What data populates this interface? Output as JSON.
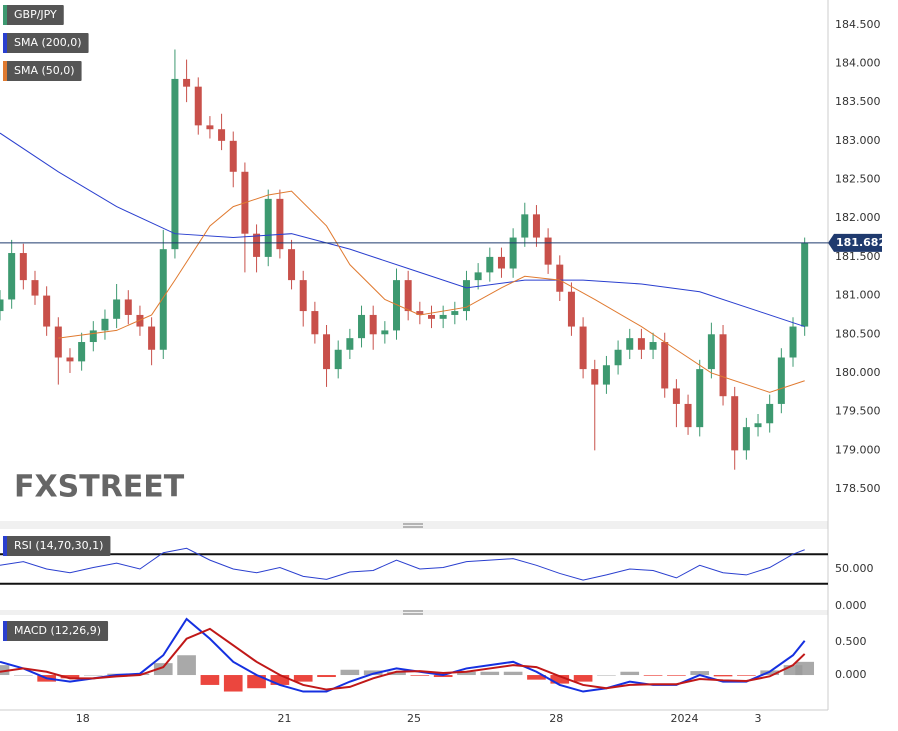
{
  "chart_data": [
    {
      "type": "candlestick",
      "title": "GBP/JPY",
      "watermark": "FXSTREET",
      "up_color": "#3d9970",
      "down_color": "#c8504a",
      "xlim": [
        0,
        71
      ],
      "xticks": [
        {
          "value": 7.1,
          "label": "18"
        },
        {
          "value": 24.4,
          "label": "21"
        },
        {
          "value": 35.5,
          "label": "25"
        },
        {
          "value": 47.7,
          "label": "28"
        },
        {
          "value": 58.7,
          "label": "2024"
        },
        {
          "value": 65,
          "label": "3"
        }
      ],
      "ylim": [
        178.1,
        184.82
      ],
      "yticks": [
        {
          "value": 178.5,
          "label": "178.500"
        },
        {
          "value": 179,
          "label": "179.000"
        },
        {
          "value": 179.5,
          "label": "179.500"
        },
        {
          "value": 180,
          "label": "180.000"
        },
        {
          "value": 180.5,
          "label": "180.500"
        },
        {
          "value": 181,
          "label": "181.000"
        },
        {
          "value": 181.5,
          "label": "181.500"
        },
        {
          "value": 182,
          "label": "182.000"
        },
        {
          "value": 182.5,
          "label": "182.500"
        },
        {
          "value": 183,
          "label": "183.000"
        },
        {
          "value": 183.5,
          "label": "183.500"
        },
        {
          "value": 184,
          "label": "184.000"
        },
        {
          "value": 184.5,
          "label": "184.500"
        }
      ],
      "last_price": 181.682,
      "last_price_color": "#1f3a6e",
      "x": [
        0,
        1,
        2,
        3,
        4,
        5,
        6,
        7,
        8,
        9,
        10,
        11,
        12,
        13,
        14,
        15,
        16,
        17,
        18,
        19,
        20,
        21,
        22,
        23,
        24,
        25,
        26,
        27,
        28,
        29,
        30,
        31,
        32,
        33,
        34,
        35,
        36,
        37,
        38,
        39,
        40,
        41,
        42,
        43,
        44,
        45,
        46,
        47,
        48,
        49,
        50,
        51,
        52,
        53,
        54,
        55,
        56,
        57,
        58,
        59,
        60,
        61,
        62,
        63,
        64,
        65,
        66,
        67,
        68,
        69
      ],
      "open": [
        180.8,
        180.95,
        181.55,
        181.2,
        181.0,
        180.6,
        180.2,
        180.15,
        180.4,
        180.55,
        180.7,
        180.95,
        180.75,
        180.6,
        180.3,
        181.6,
        183.8,
        183.7,
        183.2,
        183.15,
        183.0,
        182.6,
        181.8,
        181.5,
        182.25,
        181.6,
        181.2,
        180.8,
        180.5,
        180.05,
        180.3,
        180.45,
        180.75,
        180.5,
        180.55,
        181.2,
        180.8,
        180.75,
        180.7,
        180.75,
        180.8,
        181.2,
        181.3,
        181.5,
        181.35,
        181.75,
        182.05,
        181.75,
        181.4,
        181.05,
        180.6,
        180.05,
        179.85,
        180.1,
        180.3,
        180.45,
        180.3,
        180.4,
        179.8,
        179.6,
        179.3,
        180.05,
        180.5,
        179.7,
        179.0,
        179.3,
        179.35,
        179.6,
        180.2,
        180.6
      ],
      "high": [
        181.07,
        181.72,
        181.67,
        181.32,
        181.12,
        180.72,
        180.32,
        180.52,
        180.67,
        180.82,
        181.15,
        181.07,
        180.87,
        180.72,
        181.85,
        184.18,
        184.05,
        183.82,
        183.32,
        183.35,
        183.12,
        182.72,
        181.92,
        182.37,
        182.37,
        181.72,
        181.32,
        180.92,
        180.62,
        180.42,
        180.57,
        180.87,
        180.87,
        180.67,
        181.35,
        181.32,
        180.92,
        180.87,
        180.87,
        180.92,
        181.32,
        181.42,
        181.62,
        181.62,
        181.87,
        182.2,
        182.17,
        181.87,
        181.52,
        181.17,
        180.72,
        180.17,
        180.22,
        180.42,
        180.57,
        180.57,
        180.52,
        180.52,
        179.92,
        179.72,
        180.17,
        180.65,
        180.62,
        179.82,
        179.42,
        179.47,
        179.72,
        180.32,
        180.72,
        181.75
      ],
      "low": [
        180.68,
        180.83,
        181.08,
        180.88,
        180.48,
        179.85,
        180.0,
        180.03,
        180.28,
        180.43,
        180.58,
        180.63,
        180.48,
        180.1,
        180.18,
        181.48,
        183.5,
        183.08,
        183.03,
        182.88,
        182.4,
        181.3,
        181.3,
        181.38,
        181.48,
        181.08,
        180.6,
        180.38,
        179.82,
        179.93,
        180.18,
        180.33,
        180.3,
        180.38,
        180.43,
        180.68,
        180.63,
        180.58,
        180.58,
        180.63,
        180.68,
        181.08,
        181.18,
        181.23,
        181.23,
        181.63,
        181.63,
        181.28,
        180.93,
        180.48,
        179.93,
        179.0,
        179.73,
        179.98,
        180.18,
        180.18,
        180.18,
        179.68,
        179.3,
        179.2,
        179.18,
        179.93,
        179.58,
        178.75,
        178.88,
        179.18,
        179.23,
        179.48,
        180.08,
        180.48
      ],
      "close": [
        180.95,
        181.55,
        181.2,
        181.0,
        180.6,
        180.2,
        180.15,
        180.4,
        180.55,
        180.7,
        180.95,
        180.75,
        180.6,
        180.3,
        181.6,
        183.8,
        183.7,
        183.2,
        183.15,
        183.0,
        182.6,
        181.8,
        181.5,
        182.25,
        181.6,
        181.2,
        180.8,
        180.5,
        180.05,
        180.3,
        180.45,
        180.75,
        180.5,
        180.55,
        181.2,
        180.8,
        180.75,
        180.7,
        180.75,
        180.8,
        181.2,
        181.3,
        181.5,
        181.35,
        181.75,
        182.05,
        181.75,
        181.4,
        181.05,
        180.6,
        180.05,
        179.85,
        180.1,
        180.3,
        180.45,
        180.3,
        180.4,
        179.8,
        179.6,
        179.3,
        180.05,
        180.5,
        179.7,
        179.0,
        179.3,
        179.35,
        179.6,
        180.2,
        180.6,
        181.68
      ],
      "series": [
        {
          "name": "SMA (200,0)",
          "color": "#2a3fcf",
          "x": [
            0,
            5,
            10,
            15,
            20,
            25,
            30,
            35,
            40,
            45,
            50,
            55,
            60,
            65,
            69
          ],
          "values": [
            183.1,
            182.6,
            182.15,
            181.8,
            181.75,
            181.8,
            181.6,
            181.35,
            181.1,
            181.2,
            181.2,
            181.15,
            181.05,
            180.8,
            180.6
          ]
        },
        {
          "name": "SMA (50,0)",
          "color": "#e07a30",
          "x": [
            5,
            10,
            13,
            15,
            18,
            20,
            23,
            25,
            28,
            30,
            33,
            36,
            40,
            43,
            45,
            48,
            51,
            55,
            58,
            61,
            64,
            66,
            69
          ],
          "values": [
            180.45,
            180.55,
            180.75,
            181.2,
            181.9,
            182.15,
            182.3,
            182.35,
            181.9,
            181.4,
            180.95,
            180.75,
            180.85,
            181.1,
            181.25,
            181.2,
            180.95,
            180.6,
            180.3,
            180.0,
            179.85,
            179.75,
            179.9
          ]
        }
      ]
    },
    {
      "type": "line",
      "title": "RSI (14,70,30,1)",
      "title_color": "#2a3fcf",
      "levels": [
        70,
        30
      ],
      "ylim": [
        -5.4,
        102.7
      ],
      "yticks": [
        {
          "value": 0,
          "label": "0.000"
        },
        {
          "value": 50,
          "label": "50.000"
        }
      ],
      "x": [
        0,
        2,
        4,
        6,
        8,
        10,
        12,
        14,
        16,
        18,
        20,
        22,
        24,
        26,
        28,
        30,
        32,
        34,
        36,
        38,
        40,
        42,
        44,
        46,
        48,
        50,
        52,
        54,
        56,
        58,
        60,
        62,
        64,
        66,
        68,
        69
      ],
      "series": [
        {
          "color": "#2a3fcf",
          "values": [
            55,
            60,
            50,
            45,
            52,
            58,
            50,
            72,
            78,
            62,
            50,
            45,
            52,
            40,
            36,
            46,
            48,
            62,
            50,
            52,
            60,
            62,
            64,
            55,
            44,
            35,
            42,
            50,
            48,
            38,
            55,
            45,
            42,
            52,
            70,
            76
          ]
        }
      ]
    },
    {
      "type": "line",
      "title": "MACD (12,26,9)",
      "title_color": "#2a3fcf",
      "ylim": [
        -0.53,
        0.91
      ],
      "yticks": [
        {
          "value": 0,
          "label": "0.000"
        },
        {
          "value": 0.5,
          "label": "0.500"
        }
      ],
      "x": [
        0,
        2,
        4,
        6,
        8,
        10,
        12,
        14,
        16,
        18,
        20,
        22,
        24,
        26,
        28,
        30,
        32,
        34,
        36,
        38,
        40,
        42,
        44,
        46,
        48,
        50,
        52,
        54,
        56,
        58,
        60,
        62,
        64,
        66,
        68,
        69
      ],
      "series": [
        {
          "type": "bar",
          "color": "#9a9a9a",
          "negative_color": "#e8261c",
          "values": [
            0.15,
            0,
            -0.1,
            -0.05,
            0,
            0.02,
            0.02,
            0.18,
            0.3,
            -0.15,
            -0.25,
            -0.2,
            -0.15,
            -0.1,
            -0.03,
            0.08,
            0.07,
            0.05,
            -0.01,
            -0.03,
            0.05,
            0.05,
            0.05,
            -0.07,
            -0.13,
            -0.1,
            0,
            0.05,
            -0.01,
            -0.01,
            0.06,
            -0.02,
            -0.01,
            0.07,
            0.15,
            0.2
          ]
        },
        {
          "color": "#1530e0",
          "values": [
            0.2,
            0.1,
            -0.05,
            -0.1,
            -0.05,
            0.0,
            0.02,
            0.3,
            0.85,
            0.55,
            0.2,
            0.0,
            -0.15,
            -0.25,
            -0.25,
            -0.1,
            0.02,
            0.1,
            0.05,
            0.0,
            0.1,
            0.15,
            0.2,
            0.05,
            -0.15,
            -0.25,
            -0.2,
            -0.1,
            -0.15,
            -0.15,
            0.0,
            -0.1,
            -0.1,
            0.05,
            0.3,
            0.52
          ]
        },
        {
          "color": "#c01818",
          "values": [
            0.05,
            0.1,
            0.05,
            -0.05,
            -0.05,
            -0.02,
            0.0,
            0.12,
            0.55,
            0.7,
            0.45,
            0.2,
            0.0,
            -0.15,
            -0.22,
            -0.18,
            -0.05,
            0.05,
            0.06,
            0.03,
            0.05,
            0.1,
            0.15,
            0.12,
            -0.02,
            -0.15,
            -0.2,
            -0.15,
            -0.14,
            -0.14,
            -0.06,
            -0.08,
            -0.09,
            -0.02,
            0.15,
            0.32
          ]
        }
      ]
    }
  ]
}
